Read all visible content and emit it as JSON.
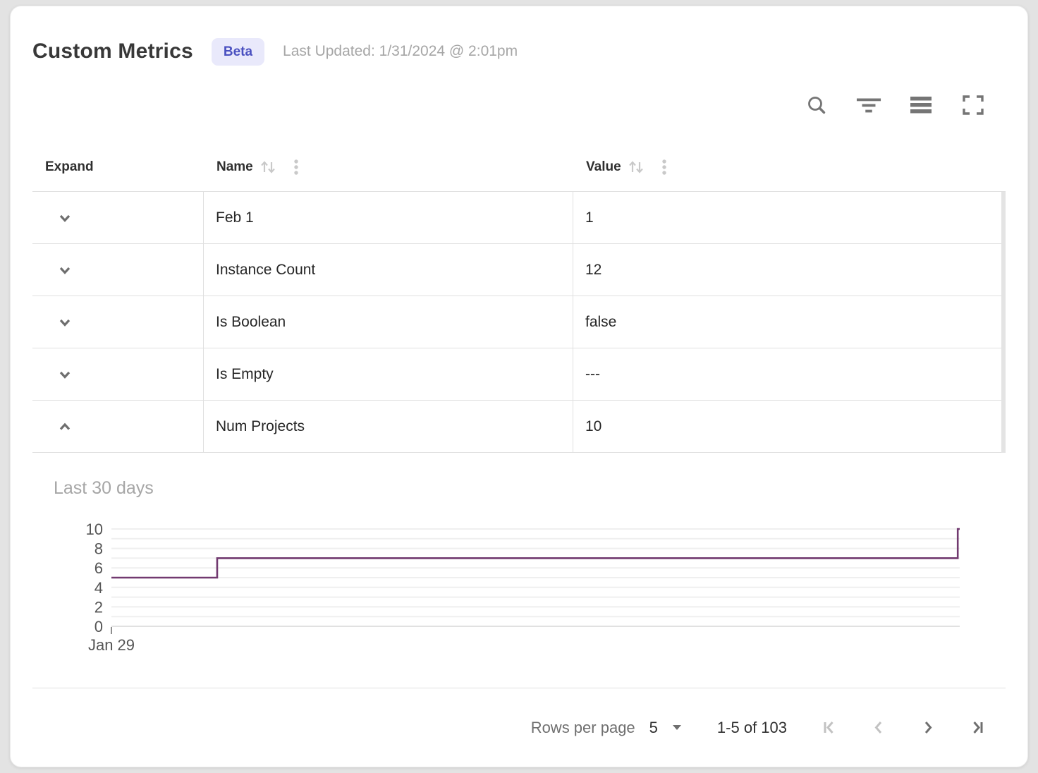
{
  "header": {
    "title": "Custom Metrics",
    "badge": "Beta",
    "last_updated": "Last Updated: 1/31/2024 @ 2:01pm"
  },
  "toolbar": {
    "icons": [
      "search",
      "filter",
      "density",
      "fullscreen"
    ]
  },
  "table": {
    "columns": [
      {
        "label": "Expand",
        "sortable": false
      },
      {
        "label": "Name",
        "sortable": true
      },
      {
        "label": "Value",
        "sortable": true
      }
    ],
    "rows": [
      {
        "name": "Feb 1",
        "value": "1",
        "expanded": false
      },
      {
        "name": "Instance Count",
        "value": "12",
        "expanded": false
      },
      {
        "name": "Is Boolean",
        "value": "false",
        "expanded": false
      },
      {
        "name": "Is Empty",
        "value": "---",
        "expanded": false
      },
      {
        "name": "Num Projects",
        "value": "10",
        "expanded": true
      }
    ]
  },
  "chart_data": {
    "type": "line",
    "subtype": "step",
    "title": "Last 30 days",
    "x_tick_labels": [
      "Jan 29"
    ],
    "xlim": [
      0,
      30
    ],
    "y_ticks": [
      0,
      2,
      4,
      6,
      8,
      10
    ],
    "ylim": [
      0,
      10
    ],
    "gridline_step": 1,
    "grid": true,
    "legend": false,
    "line_color": "#723a70",
    "points": [
      [
        0,
        5
      ],
      [
        3.74,
        5
      ],
      [
        3.74,
        7
      ],
      [
        29.93,
        7
      ],
      [
        29.93,
        10
      ],
      [
        30,
        10
      ]
    ]
  },
  "footer": {
    "rows_per_page_label": "Rows per page",
    "rows_per_page_value": "5",
    "range_label": "1-5 of 103",
    "pagination": [
      {
        "name": "first-page",
        "enabled": false
      },
      {
        "name": "previous-page",
        "enabled": false
      },
      {
        "name": "next-page",
        "enabled": true
      },
      {
        "name": "last-page",
        "enabled": true
      }
    ]
  },
  "colors": {
    "badge_bg": "#e9e9fb",
    "badge_text": "#4a50c0",
    "chart_line": "#723a70",
    "grid_border": "#e0e0e0"
  }
}
